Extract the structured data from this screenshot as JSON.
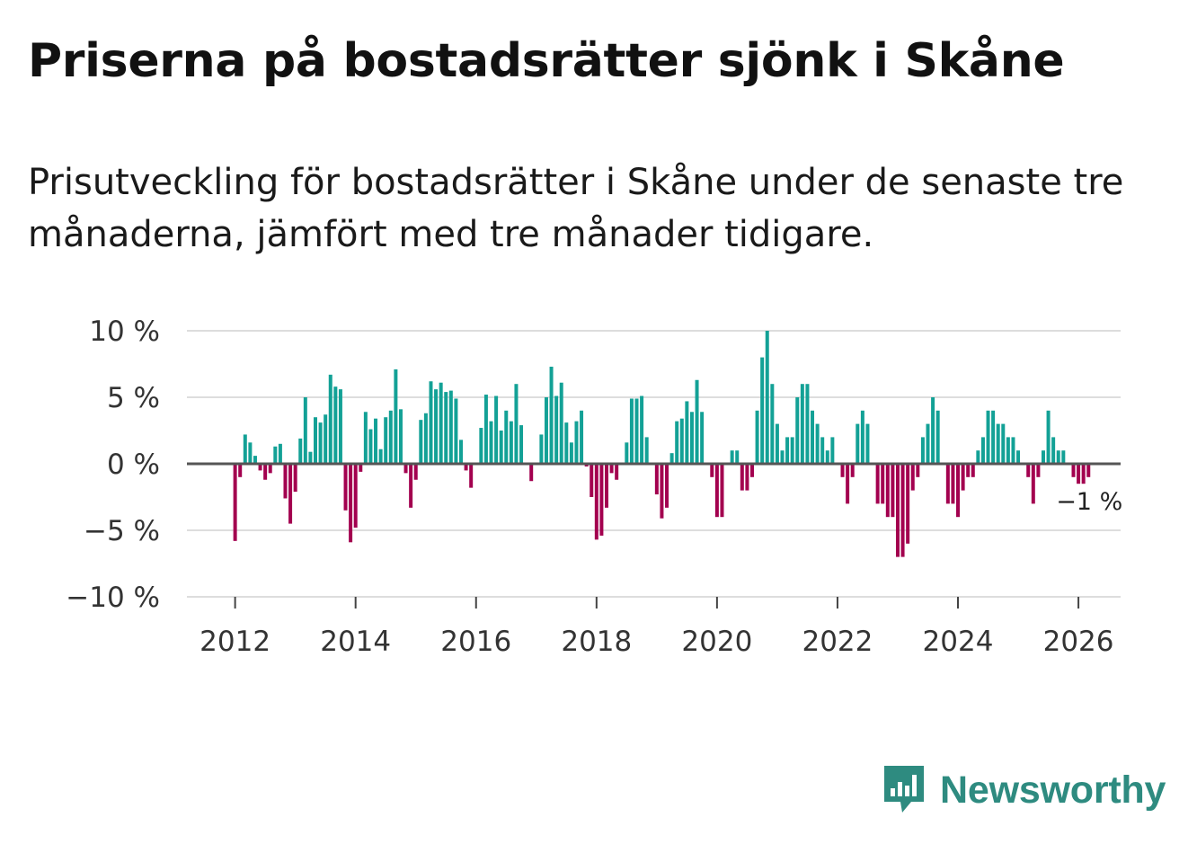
{
  "header": {
    "title": "Priserna på bostadsrätter sjönk i Skåne",
    "subtitle": "Prisutveckling för bostadsrätter i Skåne under de senaste tre månaderna, jämfört med tre månader tidigare."
  },
  "brand": {
    "name": "Newsworthy"
  },
  "colors": {
    "positive": "#13a196",
    "negative": "#a3004f",
    "grid": "#dddddd",
    "zero": "#555555"
  },
  "chart_data": {
    "type": "bar",
    "title": "Priserna på bostadsrätter sjönk i Skåne",
    "ylabel": "",
    "xlabel": "",
    "ylim": [
      -10,
      10
    ],
    "y_ticks": [
      {
        "value": 10,
        "label": "10 %"
      },
      {
        "value": 5,
        "label": "5 %"
      },
      {
        "value": 0,
        "label": "0 %"
      },
      {
        "value": -5,
        "label": "−5 %"
      },
      {
        "value": -10,
        "label": "−10 %"
      }
    ],
    "x_ticks": [
      {
        "value": 2012,
        "label": "2012"
      },
      {
        "value": 2014,
        "label": "2014"
      },
      {
        "value": 2016,
        "label": "2016"
      },
      {
        "value": 2018,
        "label": "2018"
      },
      {
        "value": 2020,
        "label": "2020"
      },
      {
        "value": 2022,
        "label": "2022"
      },
      {
        "value": 2024,
        "label": "2024"
      },
      {
        "value": 2026,
        "label": "2026"
      }
    ],
    "x_domain": [
      2011.2,
      2026.7
    ],
    "start": 2012.0,
    "step": 0.0833333,
    "values": [
      -5.8,
      -1.0,
      2.2,
      1.6,
      0.6,
      -0.5,
      -1.2,
      -0.7,
      1.3,
      1.5,
      -2.6,
      -4.5,
      -2.1,
      1.9,
      5.0,
      0.9,
      3.5,
      3.1,
      3.7,
      6.7,
      5.8,
      5.6,
      -3.5,
      -5.9,
      -4.8,
      -0.6,
      3.9,
      2.6,
      3.4,
      1.1,
      3.5,
      4.0,
      7.1,
      4.1,
      -0.7,
      -3.3,
      -1.2,
      3.3,
      3.8,
      6.2,
      5.6,
      6.1,
      5.4,
      5.5,
      4.9,
      1.8,
      -0.5,
      -1.8,
      0.0,
      2.7,
      5.2,
      3.2,
      5.1,
      2.5,
      4.0,
      3.2,
      6.0,
      2.9,
      0.0,
      -1.3,
      0.0,
      2.2,
      5.0,
      7.3,
      5.1,
      6.1,
      3.1,
      1.6,
      3.2,
      4.0,
      -0.2,
      -2.5,
      -5.7,
      -5.4,
      -3.3,
      -0.7,
      -1.2,
      0.1,
      1.6,
      4.9,
      4.9,
      5.1,
      2.0,
      0.0,
      -2.3,
      -4.1,
      -3.3,
      0.8,
      3.2,
      3.4,
      4.7,
      3.9,
      6.3,
      3.9,
      0.0,
      -1.0,
      -4.0,
      -4.0,
      0.0,
      1.0,
      1.0,
      -2.0,
      -2.0,
      -1.0,
      4.0,
      8.0,
      10.0,
      6.0,
      3.0,
      1.0,
      2.0,
      2.0,
      5.0,
      6.0,
      6.0,
      4.0,
      3.0,
      2.0,
      1.0,
      2.0,
      0.0,
      -1.0,
      -3.0,
      -1.0,
      3.0,
      4.0,
      3.0,
      0.0,
      -3.0,
      -3.0,
      -4.0,
      -4.0,
      -7.0,
      -7.0,
      -6.0,
      -2.0,
      -1.0,
      2.0,
      3.0,
      5.0,
      4.0,
      0.0,
      -3.0,
      -3.0,
      -4.0,
      -2.0,
      -1.0,
      -1.0,
      1.0,
      2.0,
      4.0,
      4.0,
      3.0,
      3.0,
      2.0,
      2.0,
      1.0,
      0.0,
      -1.0,
      -3.0,
      -1.0,
      1.0,
      4.0,
      2.0,
      1.0,
      1.0,
      0.0,
      -1.0,
      -1.5,
      -1.5,
      -1.0
    ],
    "annotation": {
      "label": "−1 %",
      "value": -1.0
    }
  }
}
